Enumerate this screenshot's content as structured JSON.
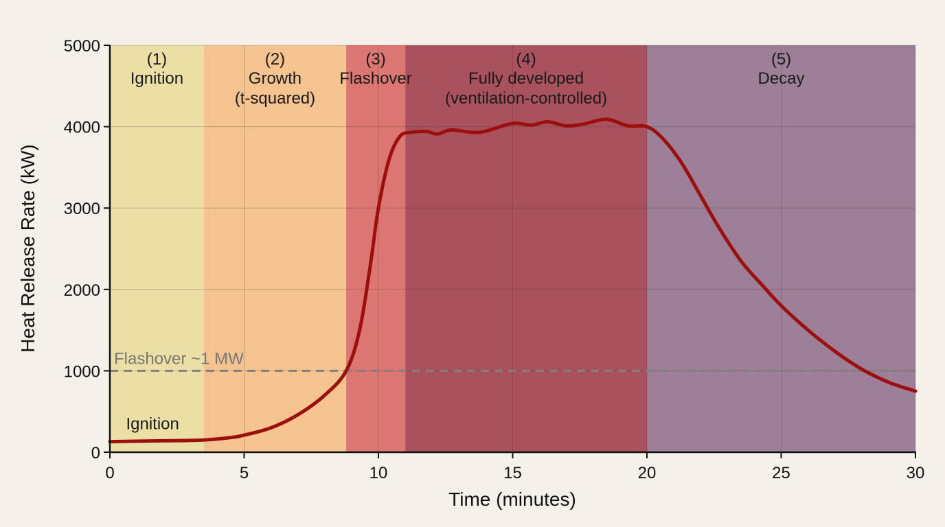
{
  "chart_data": {
    "type": "line",
    "xlabel": "Time (minutes)",
    "ylabel": "Heat Release Rate (kW)",
    "xlim": [
      0,
      30
    ],
    "ylim": [
      0,
      5000
    ],
    "xticks": [
      0,
      5,
      10,
      15,
      20,
      25,
      30
    ],
    "yticks": [
      0,
      1000,
      2000,
      3000,
      4000,
      5000
    ],
    "grid": true,
    "phases": [
      {
        "number": "(1)",
        "name": "Ignition",
        "sub": "",
        "start": 0,
        "end": 3.5,
        "color": "#ebdfa5"
      },
      {
        "number": "(2)",
        "name": "Growth",
        "sub": "(t-squared)",
        "start": 3.5,
        "end": 8.8,
        "color": "#f4c38f"
      },
      {
        "number": "(3)",
        "name": "Flashover",
        "sub": "",
        "start": 8.8,
        "end": 11,
        "color": "#dc7672"
      },
      {
        "number": "(4)",
        "name": "Fully developed",
        "sub": "(ventilation-controlled)",
        "start": 11,
        "end": 20,
        "color": "#a9525e"
      },
      {
        "number": "(5)",
        "name": "Decay",
        "sub": "",
        "start": 20,
        "end": 30,
        "color": "#9d7f97"
      }
    ],
    "threshold": {
      "label": "Flashover ~1 MW",
      "value": 1000,
      "color": "#808080"
    },
    "annotations": [
      {
        "text": "Ignition",
        "x": 0.6,
        "y": 350
      }
    ],
    "series": [
      {
        "color": "#9b0f0f",
        "x": [
          0,
          2,
          3.5,
          4.5,
          5,
          6,
          7,
          8,
          8.8,
          9.3,
          9.7,
          10,
          10.4,
          10.8,
          11.2,
          11.8,
          12.2,
          12.7,
          13.5,
          14,
          15,
          15.7,
          16.3,
          17,
          17.6,
          18.5,
          19.3,
          20,
          20.6,
          21.3,
          22,
          22.7,
          23.5,
          24.3,
          25,
          26,
          27,
          28,
          29,
          30
        ],
        "y": [
          130,
          140,
          150,
          180,
          210,
          300,
          460,
          700,
          1000,
          1500,
          2300,
          3000,
          3600,
          3880,
          3930,
          3940,
          3910,
          3960,
          3930,
          3945,
          4040,
          4020,
          4060,
          4010,
          4030,
          4090,
          4010,
          4000,
          3850,
          3550,
          3150,
          2750,
          2350,
          2050,
          1800,
          1500,
          1240,
          1020,
          860,
          750
        ]
      }
    ]
  }
}
